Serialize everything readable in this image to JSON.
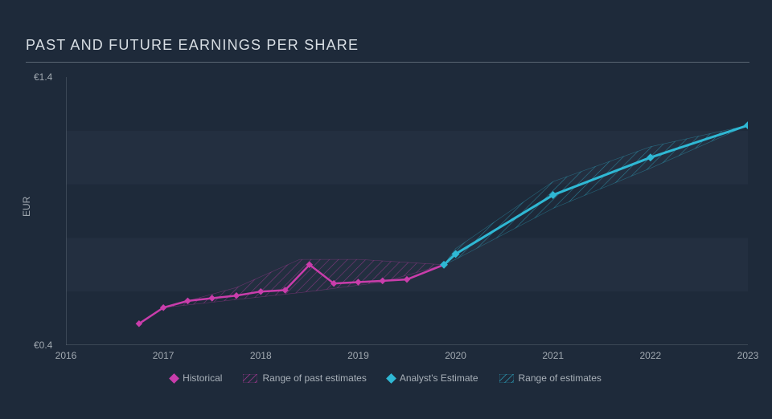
{
  "title": "PAST AND FUTURE EARNINGS PER SHARE",
  "ylabel": "EUR",
  "chart": {
    "type": "line",
    "background_color": "#1e2a3a",
    "grid_band_color": "#232f40",
    "axis_color": "#5a6572",
    "tick_font_color": "#a0a8b0",
    "tick_fontsize": 12,
    "title_fontsize": 18,
    "xlim": [
      2016,
      2023
    ],
    "ylim": [
      0.4,
      1.4
    ],
    "xticks": [
      2016,
      2017,
      2018,
      2019,
      2020,
      2021,
      2022,
      2023
    ],
    "yticks": [
      {
        "v": 0.4,
        "label": "€0.4"
      },
      {
        "v": 1.4,
        "label": "€1.4"
      }
    ],
    "series": {
      "historical": {
        "color": "#c93dab",
        "line_width": 2.5,
        "marker": "diamond",
        "marker_size": 6,
        "points": [
          {
            "x": 2016.75,
            "y": 0.48
          },
          {
            "x": 2017.0,
            "y": 0.54
          },
          {
            "x": 2017.25,
            "y": 0.565
          },
          {
            "x": 2017.5,
            "y": 0.575
          },
          {
            "x": 2017.75,
            "y": 0.585
          },
          {
            "x": 2018.0,
            "y": 0.6
          },
          {
            "x": 2018.25,
            "y": 0.605
          },
          {
            "x": 2018.5,
            "y": 0.7
          },
          {
            "x": 2018.75,
            "y": 0.63
          },
          {
            "x": 2019.0,
            "y": 0.635
          },
          {
            "x": 2019.25,
            "y": 0.64
          },
          {
            "x": 2019.5,
            "y": 0.645
          },
          {
            "x": 2019.88,
            "y": 0.7
          }
        ]
      },
      "past_range": {
        "color": "#c93dab",
        "fill_opacity": 0.15,
        "hatched": true,
        "upper": [
          {
            "x": 2017.0,
            "y": 0.54
          },
          {
            "x": 2017.75,
            "y": 0.615
          },
          {
            "x": 2018.4,
            "y": 0.72
          },
          {
            "x": 2019.0,
            "y": 0.72
          },
          {
            "x": 2019.88,
            "y": 0.7
          }
        ],
        "lower": [
          {
            "x": 2019.88,
            "y": 0.7
          },
          {
            "x": 2019.25,
            "y": 0.635
          },
          {
            "x": 2018.5,
            "y": 0.6
          },
          {
            "x": 2017.75,
            "y": 0.57
          },
          {
            "x": 2017.0,
            "y": 0.54
          }
        ]
      },
      "estimate": {
        "color": "#2fb8d4",
        "line_width": 3,
        "marker": "diamond",
        "marker_size": 7,
        "points": [
          {
            "x": 2019.88,
            "y": 0.7
          },
          {
            "x": 2020.0,
            "y": 0.74
          },
          {
            "x": 2021.0,
            "y": 0.96
          },
          {
            "x": 2022.0,
            "y": 1.1
          },
          {
            "x": 2023.0,
            "y": 1.22
          }
        ]
      },
      "estimate_range": {
        "color": "#2fb8d4",
        "fill_opacity": 0.12,
        "hatched": true,
        "upper": [
          {
            "x": 2019.88,
            "y": 0.7
          },
          {
            "x": 2020.0,
            "y": 0.76
          },
          {
            "x": 2021.0,
            "y": 1.01
          },
          {
            "x": 2022.0,
            "y": 1.14
          },
          {
            "x": 2023.0,
            "y": 1.22
          }
        ],
        "lower": [
          {
            "x": 2023.0,
            "y": 1.22
          },
          {
            "x": 2022.0,
            "y": 1.06
          },
          {
            "x": 2021.0,
            "y": 0.91
          },
          {
            "x": 2020.0,
            "y": 0.72
          },
          {
            "x": 2019.88,
            "y": 0.7
          }
        ]
      }
    }
  },
  "legend": {
    "items": [
      {
        "key": "hist",
        "label": "Historical",
        "color": "#c93dab",
        "type": "marker"
      },
      {
        "key": "past_range",
        "label": "Range of past estimates",
        "color": "#c93dab",
        "type": "hatch"
      },
      {
        "key": "est",
        "label": "Analyst's Estimate",
        "color": "#2fb8d4",
        "type": "marker"
      },
      {
        "key": "est_range",
        "label": "Range of estimates",
        "color": "#2fb8d4",
        "type": "hatch"
      }
    ]
  }
}
